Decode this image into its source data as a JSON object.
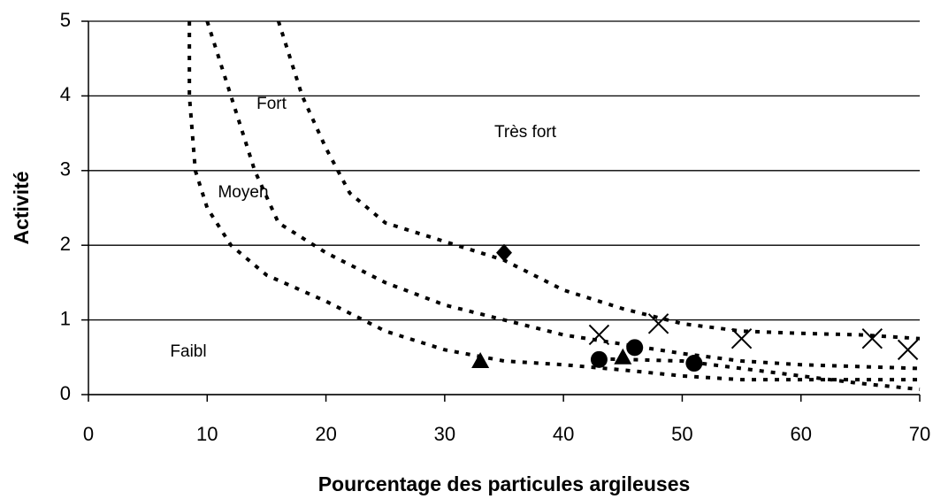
{
  "chart_data": {
    "type": "scatter",
    "xlabel": "Pourcentage des particules argileuses",
    "ylabel": "Activité",
    "xlim": [
      0,
      70
    ],
    "ylim": [
      0,
      5
    ],
    "xticks": [
      0,
      10,
      20,
      30,
      40,
      50,
      60,
      70
    ],
    "yticks": [
      0,
      1,
      2,
      3,
      4,
      5
    ],
    "grid": true,
    "annotations": [
      "Fort",
      "Très fort",
      "Moyen",
      "Faibl"
    ],
    "series": [
      {
        "style": "dotted",
        "color": "#000000",
        "x": [
          8.5,
          8.5,
          9,
          10,
          12,
          15,
          20,
          25,
          30,
          35,
          40,
          45,
          50,
          55,
          60,
          65,
          70
        ],
        "values": [
          5,
          4,
          3,
          2.5,
          2,
          1.6,
          1.25,
          0.85,
          0.6,
          0.45,
          0.4,
          0.33,
          0.25,
          0.2,
          0.2,
          0.2,
          0.2
        ]
      },
      {
        "style": "dotted",
        "color": "#000000",
        "x": [
          10,
          12,
          14,
          16,
          20,
          25,
          30,
          40,
          50,
          55,
          60,
          70
        ],
        "values": [
          5,
          4,
          3,
          2.3,
          1.9,
          1.5,
          1.2,
          0.8,
          0.55,
          0.45,
          0.4,
          0.35
        ]
      },
      {
        "style": "dotted",
        "color": "#000000",
        "x": [
          16,
          18,
          20,
          22,
          25,
          30,
          35,
          40,
          45,
          50,
          55,
          60,
          65,
          70
        ],
        "values": [
          5,
          4,
          3.3,
          2.7,
          2.3,
          2.05,
          1.8,
          1.4,
          1.15,
          0.95,
          0.85,
          0.82,
          0.8,
          0.75
        ]
      },
      {
        "style": "dotted",
        "color": "#000000",
        "x": [
          43,
          50,
          55,
          60,
          65,
          70
        ],
        "values": [
          0.48,
          0.45,
          0.35,
          0.25,
          0.15,
          0.07
        ]
      },
      {
        "marker": "diamond",
        "color": "#000000",
        "x": [
          35
        ],
        "values": [
          1.9
        ]
      },
      {
        "marker": "cross",
        "color": "#000000",
        "x": [
          43,
          48,
          55,
          66,
          69
        ],
        "values": [
          0.8,
          0.95,
          0.75,
          0.75,
          0.6
        ]
      },
      {
        "marker": "triangle",
        "color": "#000000",
        "x": [
          33,
          45
        ],
        "values": [
          0.45,
          0.5
        ]
      },
      {
        "marker": "circle",
        "color": "#000000",
        "x": [
          43,
          46,
          51
        ],
        "values": [
          0.47,
          0.63,
          0.42
        ]
      }
    ]
  }
}
